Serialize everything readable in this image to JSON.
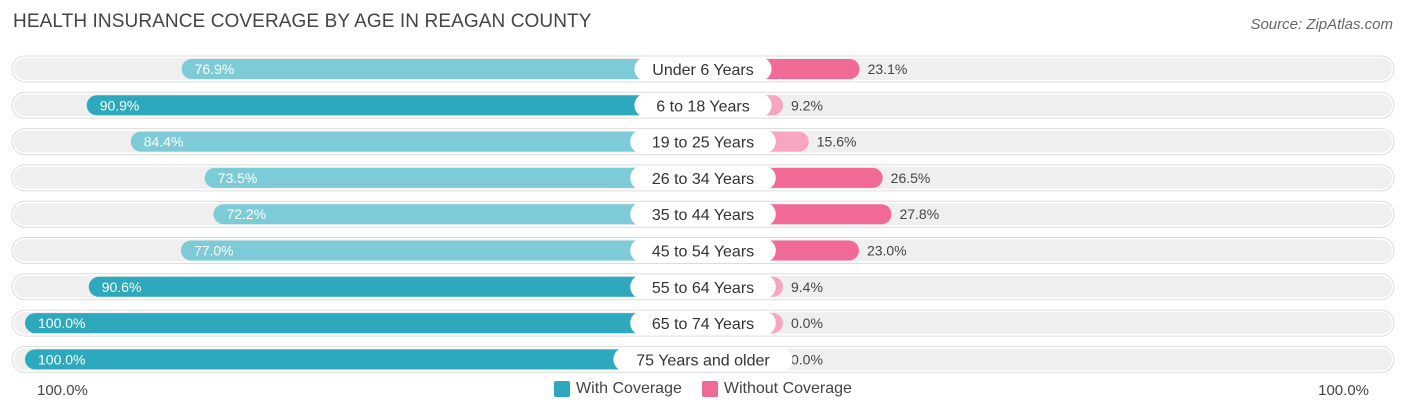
{
  "title": "HEALTH INSURANCE COVERAGE BY AGE IN REAGAN COUNTY",
  "source": "Source: ZipAtlas.com",
  "colors": {
    "with_dark": "#2ea8bd",
    "with_light": "#7dcbd6",
    "without_dark": "#f06a95",
    "without_light": "#f7a6c1",
    "track": "#efefef"
  },
  "legend": {
    "with": "With Coverage",
    "without": "Without Coverage"
  },
  "axis": {
    "left": "100.0%",
    "right": "100.0%"
  },
  "chart_data": {
    "type": "bar",
    "orientation": "horizontal-diverging",
    "categories": [
      "Under 6 Years",
      "6 to 18 Years",
      "19 to 25 Years",
      "26 to 34 Years",
      "35 to 44 Years",
      "45 to 54 Years",
      "55 to 64 Years",
      "65 to 74 Years",
      "75 Years and older"
    ],
    "series": [
      {
        "name": "With Coverage",
        "values": [
          76.9,
          90.9,
          84.4,
          73.5,
          72.2,
          77.0,
          90.6,
          100.0,
          100.0
        ],
        "labels": [
          "76.9%",
          "90.9%",
          "84.4%",
          "73.5%",
          "72.2%",
          "77.0%",
          "90.6%",
          "100.0%",
          "100.0%"
        ]
      },
      {
        "name": "Without Coverage",
        "values": [
          23.1,
          9.2,
          15.6,
          26.5,
          27.8,
          23.0,
          9.4,
          0.0,
          0.0
        ],
        "labels": [
          "23.1%",
          "9.2%",
          "15.6%",
          "26.5%",
          "27.8%",
          "23.0%",
          "9.4%",
          "0.0%",
          "0.0%"
        ]
      }
    ],
    "xlim": [
      0,
      100
    ]
  }
}
